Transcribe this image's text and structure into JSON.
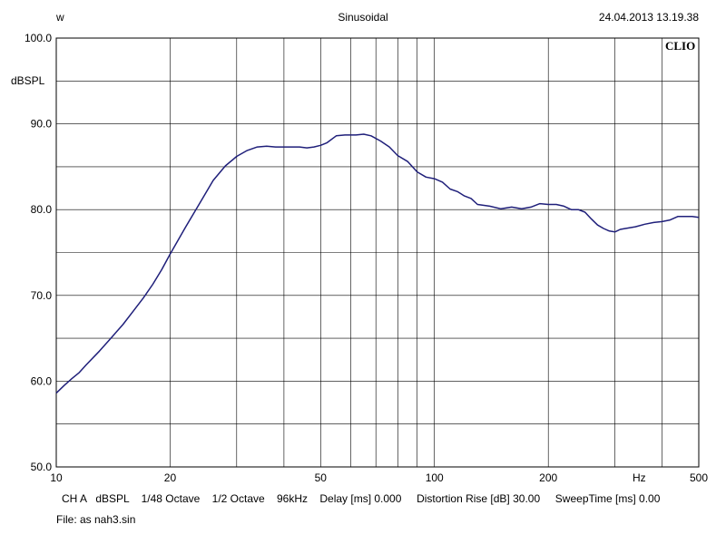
{
  "header": {
    "left": "w",
    "center": "Sinusoidal",
    "right": "24.04.2013 13.19.38"
  },
  "brand": "CLIO",
  "footer": {
    "info": "CH A   dBSPL    1/48 Octave    1/2 Octave    96kHz    Delay [ms] 0.000     Distortion Rise [dB] 30.00     SweepTime [ms] 0.00",
    "file": "File: as nah3.sin"
  },
  "chart_data": {
    "type": "line",
    "title": "Sinusoidal",
    "xlabel": "Hz",
    "ylabel": "dBSPL",
    "x_scale": "log",
    "xlim": [
      10,
      500
    ],
    "ylim": [
      50,
      100
    ],
    "grid": true,
    "y_ticks": [
      "50.0",
      "60.0",
      "70.0",
      "80.0",
      "90.0",
      "100.0"
    ],
    "x_ticks": [
      "10",
      "20",
      "50",
      "100",
      "200",
      "500"
    ],
    "line_color": "#1f1f7a",
    "series": [
      {
        "x": [
          10,
          10.5,
          11,
          11.5,
          12,
          13,
          14,
          15,
          16,
          17,
          18,
          19,
          20,
          22,
          24,
          26,
          28,
          30,
          32,
          34,
          36,
          38,
          40,
          42,
          44,
          46,
          48,
          50,
          52,
          55,
          58,
          62,
          65,
          68,
          72,
          76,
          80,
          85,
          90,
          95,
          100,
          105,
          110,
          115,
          120,
          125,
          130,
          140,
          150,
          160,
          170,
          180,
          190,
          200,
          210,
          220,
          230,
          240,
          250,
          260,
          270,
          280,
          290,
          300,
          310,
          320,
          340,
          360,
          380,
          400,
          420,
          440,
          460,
          480,
          500
        ],
        "y": [
          58.6,
          59.5,
          60.3,
          61.0,
          61.9,
          63.5,
          65.1,
          66.6,
          68.2,
          69.7,
          71.3,
          73.0,
          74.8,
          78.0,
          80.8,
          83.4,
          85.1,
          86.2,
          86.9,
          87.3,
          87.4,
          87.3,
          87.3,
          87.3,
          87.3,
          87.2,
          87.3,
          87.5,
          87.8,
          88.6,
          88.7,
          88.7,
          88.8,
          88.6,
          88.0,
          87.3,
          86.3,
          85.6,
          84.4,
          83.8,
          83.6,
          83.2,
          82.4,
          82.1,
          81.6,
          81.3,
          80.6,
          80.4,
          80.1,
          80.3,
          80.1,
          80.3,
          80.7,
          80.6,
          80.6,
          80.4,
          80.0,
          80.0,
          79.7,
          78.9,
          78.2,
          77.8,
          77.5,
          77.4,
          77.7,
          77.8,
          78.0,
          78.3,
          78.5,
          78.6,
          78.8,
          79.2,
          79.2,
          79.2,
          79.1
        ]
      }
    ]
  }
}
